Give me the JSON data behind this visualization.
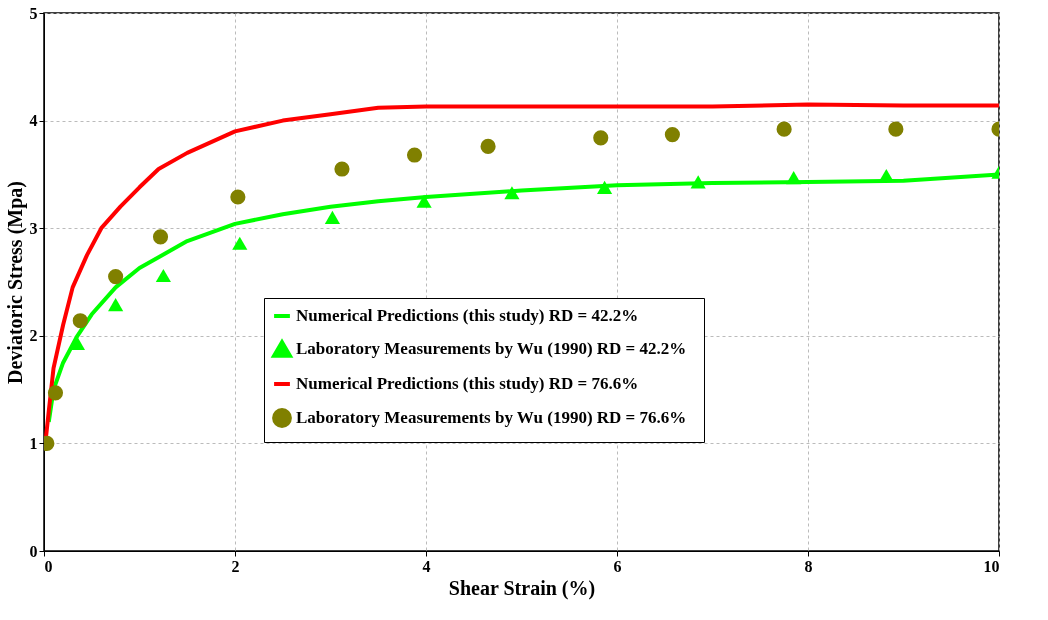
{
  "chart_data": {
    "type": "line",
    "xlabel": "Shear Strain (%)",
    "ylabel": "Deviatoric Stress (Mpa)",
    "xlim": [
      0,
      10
    ],
    "xticks": [
      0,
      2,
      4,
      6,
      8,
      10
    ],
    "ylim": [
      0,
      5
    ],
    "yticks": [
      0,
      1,
      2,
      3,
      4,
      5
    ],
    "grid": true,
    "legend": "right",
    "series": [
      {
        "name": "Numerical Predictions (this study)   RD = 42.2%",
        "color": "#00ff00",
        "marker": "none",
        "x": [
          0.05,
          0.1,
          0.2,
          0.35,
          0.5,
          0.75,
          1.0,
          1.5,
          2.0,
          2.5,
          3,
          3.5,
          4,
          5,
          6,
          7,
          8,
          9,
          10
        ],
        "values": [
          1.2,
          1.5,
          1.75,
          2.0,
          2.2,
          2.45,
          2.63,
          2.88,
          3.04,
          3.13,
          3.2,
          3.25,
          3.29,
          3.35,
          3.4,
          3.42,
          3.43,
          3.44,
          3.5
        ]
      },
      {
        "name": "Laboratory Measurements by Wu (1990)   RD = 42.2%",
        "type": "scatter",
        "color": "#00ff00",
        "marker": "triangle",
        "x": [
          0.35,
          0.75,
          1.25,
          2.05,
          3.02,
          3.98,
          4.9,
          5.87,
          6.85,
          7.85,
          8.82,
          10
        ],
        "values": [
          1.93,
          2.29,
          2.56,
          2.86,
          3.1,
          3.25,
          3.33,
          3.38,
          3.43,
          3.47,
          3.49,
          3.52
        ]
      },
      {
        "name": "Numerical Predictions (this study)   RD = 76.6%",
        "color": "#ff0000",
        "marker": "none",
        "x": [
          0.02,
          0.05,
          0.1,
          0.2,
          0.3,
          0.45,
          0.6,
          0.8,
          1.0,
          1.2,
          1.5,
          2.0,
          2.5,
          3.0,
          3.5,
          4,
          5,
          6,
          7,
          8,
          9,
          10
        ],
        "values": [
          1.05,
          1.3,
          1.7,
          2.1,
          2.45,
          2.75,
          3.0,
          3.2,
          3.38,
          3.55,
          3.7,
          3.9,
          4.0,
          4.06,
          4.12,
          4.13,
          4.13,
          4.13,
          4.13,
          4.15,
          4.14,
          4.14
        ]
      },
      {
        "name": "Laboratory Measurements by Wu (1990)   RD = 76.6%",
        "type": "scatter",
        "color": "#808000",
        "marker": "circle",
        "x": [
          0.03,
          0.12,
          0.38,
          0.75,
          1.22,
          2.03,
          3.12,
          3.88,
          4.65,
          5.83,
          6.58,
          7.75,
          8.92,
          10
        ],
        "values": [
          1.0,
          1.47,
          2.14,
          2.55,
          2.92,
          3.29,
          3.55,
          3.68,
          3.76,
          3.84,
          3.87,
          3.92,
          3.92,
          3.92
        ]
      }
    ]
  }
}
